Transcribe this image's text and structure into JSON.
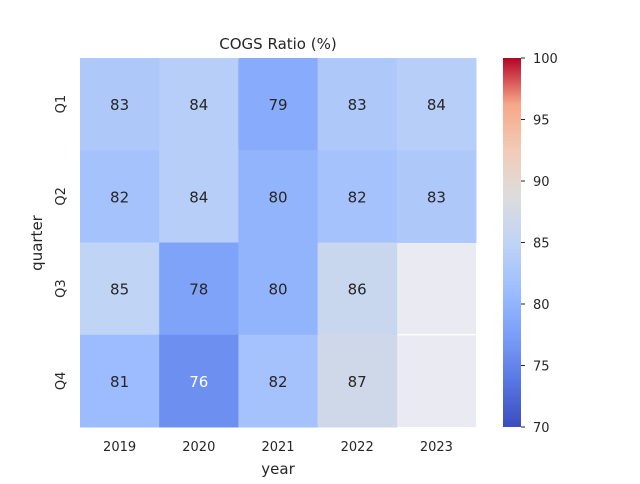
{
  "chart_data": {
    "type": "heatmap",
    "title": "COGS Ratio (%)",
    "xlabel": "year",
    "ylabel": "quarter",
    "x_categories": [
      "2019",
      "2020",
      "2021",
      "2022",
      "2023"
    ],
    "y_categories": [
      "Q1",
      "Q2",
      "Q3",
      "Q4"
    ],
    "values": [
      [
        83,
        84,
        79,
        83,
        84
      ],
      [
        82,
        84,
        80,
        82,
        83
      ],
      [
        85,
        78,
        80,
        86,
        null
      ],
      [
        81,
        76,
        82,
        87,
        null
      ]
    ],
    "colorbar": {
      "min": 70,
      "max": 100,
      "ticks": [
        "70",
        "75",
        "80",
        "85",
        "90",
        "95",
        "100"
      ],
      "colormap": "coolwarm"
    },
    "missing_color": "#eaeaf2",
    "grid": true,
    "annotated": true
  }
}
